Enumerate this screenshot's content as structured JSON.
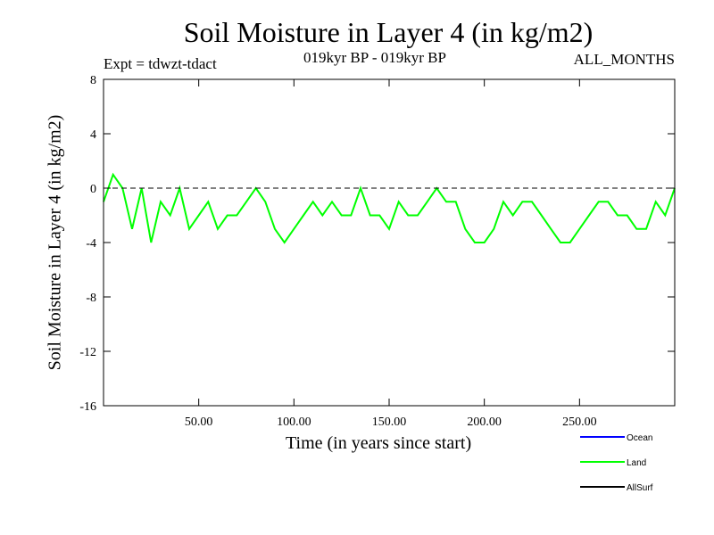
{
  "chart_data": {
    "type": "line",
    "title": "Soil Moisture in Layer 4 (in kg/m2)",
    "subtitle_left": "Expt = tdwzt-tdact",
    "subtitle_center": "019kyr BP - 019kyr BP",
    "subtitle_right": "ALL_MONTHS",
    "xlabel": "Time (in years since start)",
    "ylabel": "Soil Moisture in Layer 4 (in kg/m2)",
    "xlim": [
      0,
      300
    ],
    "ylim": [
      -16,
      8
    ],
    "x_ticks": [
      50,
      100,
      150,
      200,
      250
    ],
    "x_tick_labels": [
      "50.00",
      "100.00",
      "150.00",
      "200.00",
      "250.00"
    ],
    "y_ticks": [
      8,
      4,
      0,
      -4,
      -8,
      -12,
      -16
    ],
    "y_tick_labels": [
      "8",
      "4",
      "0",
      "-4",
      "-8",
      "-12",
      "-16"
    ],
    "zero_line": true,
    "grid": false,
    "legend_placement": "bottom-right",
    "series": [
      {
        "name": "Ocean",
        "color": "#0000ff",
        "x": [],
        "y": []
      },
      {
        "name": "Land",
        "color": "#00ff00",
        "x": [
          0,
          5,
          10,
          15,
          20,
          25,
          30,
          35,
          40,
          45,
          50,
          55,
          60,
          65,
          70,
          75,
          80,
          85,
          90,
          95,
          100,
          105,
          110,
          115,
          120,
          125,
          130,
          135,
          140,
          145,
          150,
          155,
          160,
          165,
          170,
          175,
          180,
          185,
          190,
          195,
          200,
          205,
          210,
          215,
          220,
          225,
          230,
          235,
          240,
          245,
          250,
          255,
          260,
          265,
          270,
          275,
          280,
          285,
          290,
          295,
          300
        ],
        "y": [
          -1,
          1,
          0,
          -3,
          0,
          -4,
          -1,
          -2,
          0,
          -3,
          -2,
          -1,
          -3,
          -2,
          -2,
          -1,
          0,
          -1,
          -3,
          -4,
          -3,
          -2,
          -1,
          -2,
          -1,
          -2,
          -2,
          0,
          -2,
          -2,
          -3,
          -1,
          -2,
          -2,
          -1,
          0,
          -1,
          -1,
          -3,
          -4,
          -4,
          -3,
          -1,
          -2,
          -1,
          -1,
          -2,
          -3,
          -4,
          -4,
          -3,
          -2,
          -1,
          -1,
          -2,
          -2,
          -3,
          -3,
          -1,
          -2,
          0
        ]
      },
      {
        "name": "AllSurf",
        "color": "#000000",
        "x": [],
        "y": []
      }
    ]
  }
}
